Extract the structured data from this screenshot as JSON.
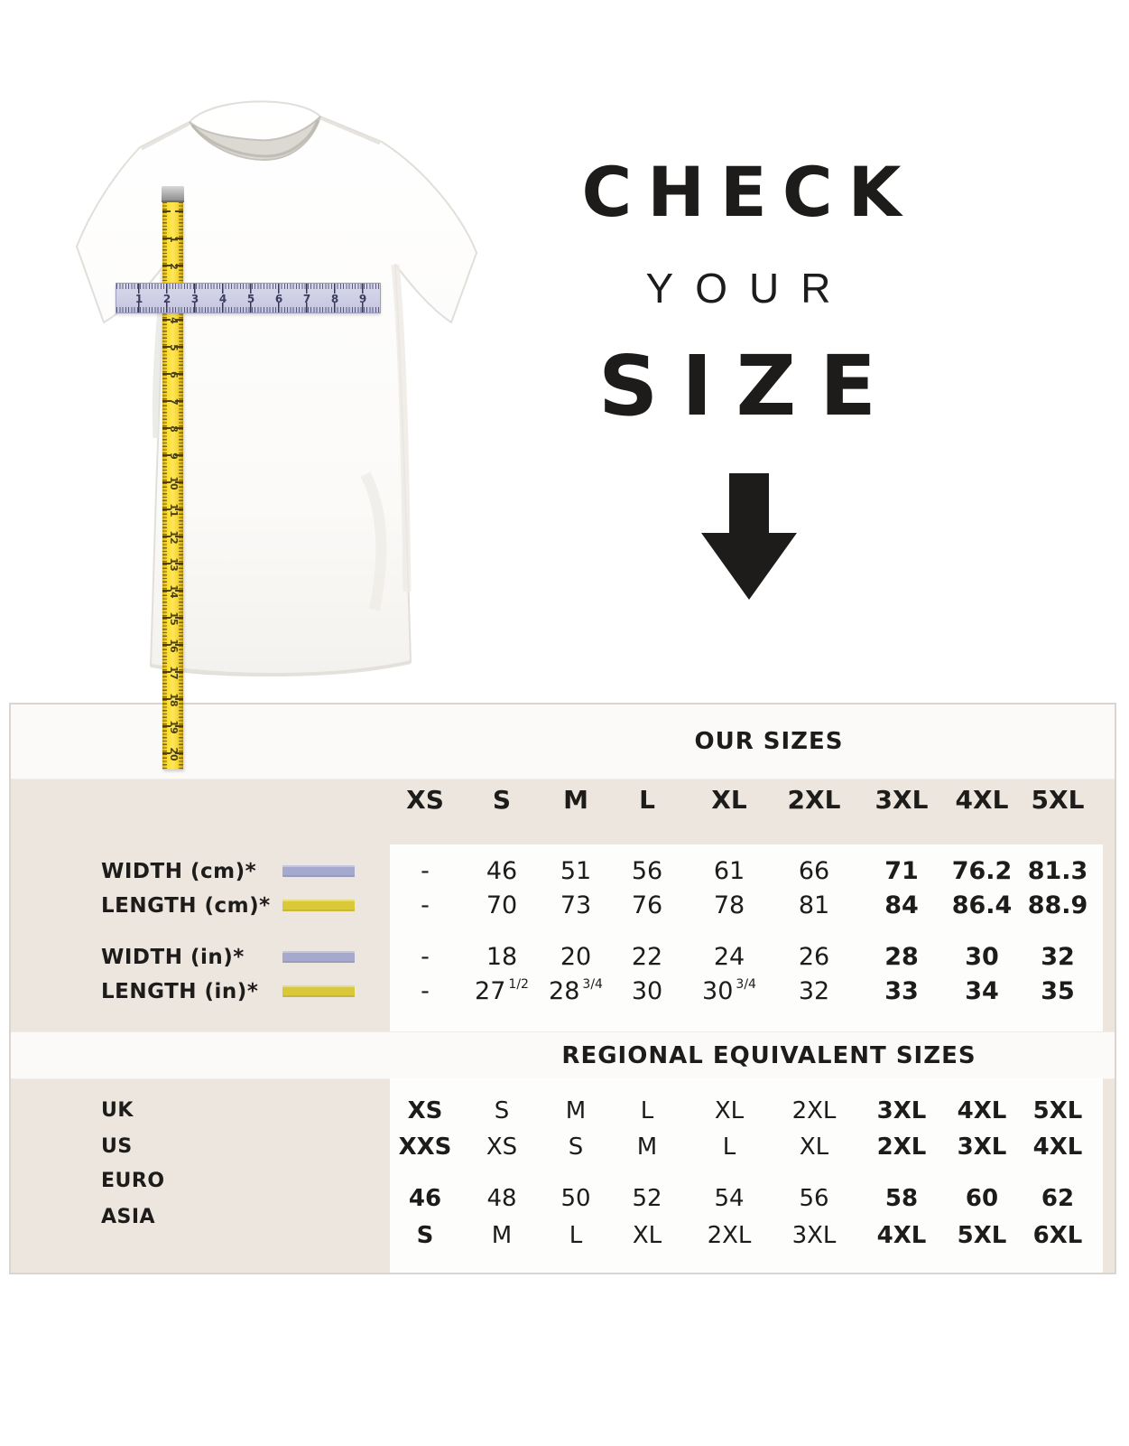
{
  "headline": {
    "line1": "CHECK",
    "line2": "YOUR",
    "line3": "SIZE",
    "arrow_icon": "down-arrow"
  },
  "illustration": {
    "vertical_tape_numbers": [
      "1",
      "2",
      "3",
      "4",
      "5",
      "6",
      "7",
      "8",
      "9",
      "10",
      "11",
      "12",
      "13",
      "14",
      "15",
      "16",
      "17",
      "18",
      "19",
      "20"
    ],
    "horizontal_ruler_numbers": [
      "1",
      "2",
      "3",
      "4",
      "5",
      "6",
      "7",
      "8",
      "9"
    ]
  },
  "table": {
    "our_sizes_title": "OUR SIZES",
    "size_columns": [
      "XS",
      "S",
      "M",
      "L",
      "XL",
      "2XL",
      "3XL",
      "4XL",
      "5XL"
    ],
    "measurement_rows": [
      {
        "label": "WIDTH (cm)*",
        "bar": "lavender",
        "values": [
          "-",
          "46",
          "51",
          "56",
          "61",
          "66",
          "71",
          "76.2",
          "81.3"
        ]
      },
      {
        "label": "LENGTH (cm)*",
        "bar": "yellow",
        "values": [
          "-",
          "70",
          "73",
          "76",
          "78",
          "81",
          "84",
          "86.4",
          "88.9"
        ]
      },
      {
        "label": "WIDTH (in)*",
        "bar": "lavender",
        "values": [
          "-",
          "18",
          "20",
          "22",
          "24",
          "26",
          "28",
          "30",
          "32"
        ]
      },
      {
        "label": "LENGTH (in)*",
        "bar": "yellow",
        "values": [
          "-",
          "27 1/2",
          "28 3/4",
          "30",
          "30 3/4",
          "32",
          "33",
          "34",
          "35"
        ]
      }
    ],
    "regional_title": "REGIONAL EQUIVALENT SIZES",
    "regional_rows": [
      {
        "label": "UK",
        "values": [
          "XS",
          "S",
          "M",
          "L",
          "XL",
          "2XL",
          "3XL",
          "4XL",
          "5XL"
        ]
      },
      {
        "label": "US",
        "values": [
          "XXS",
          "XS",
          "S",
          "M",
          "L",
          "XL",
          "2XL",
          "3XL",
          "4XL"
        ]
      },
      {
        "label": "EURO",
        "values": [
          "46",
          "48",
          "50",
          "52",
          "54",
          "56",
          "58",
          "60",
          "62"
        ]
      },
      {
        "label": "ASIA",
        "values": [
          "S",
          "M",
          "L",
          "XL",
          "2XL",
          "3XL",
          "4XL",
          "5XL",
          "6XL"
        ]
      }
    ]
  },
  "colors": {
    "beige_background": "#ECE6DF",
    "band_white": "#FBFAF8",
    "panel_white": "#FDFDFC",
    "ink": "#1D1C1A",
    "width_bar_lavender": "#A4A9CD",
    "length_bar_yellow": "#D9C838",
    "tape_yellow": "#FFDF2E",
    "ruler_lavender": "#C9C9E2"
  }
}
